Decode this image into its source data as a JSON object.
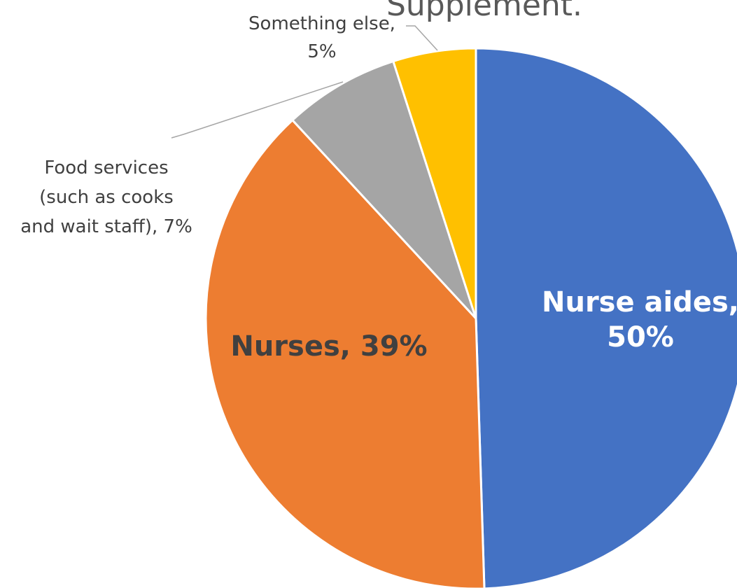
{
  "chart_data": {
    "type": "pie",
    "title": "Supplement.",
    "values": [
      50,
      39,
      7,
      5
    ],
    "colors": [
      "#4472c4",
      "#ed7d31",
      "#a5a5a5",
      "#ffc000"
    ],
    "data_labels": [
      [
        "Nurse aides,",
        "50%"
      ],
      [
        "Nurses, 39%"
      ],
      [
        "Food services",
        "(such as cooks",
        "and wait staff), 7%"
      ],
      [
        "Something else,",
        "5%"
      ]
    ]
  }
}
